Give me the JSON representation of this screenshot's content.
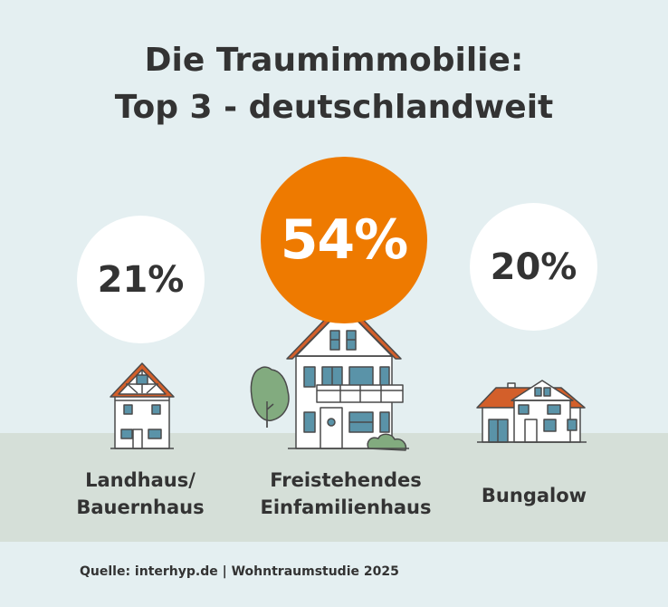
{
  "title": {
    "line1": "Die Traumimmobilie:",
    "line2": "Top 3 - deutschlandweit"
  },
  "chart_data": {
    "type": "bar",
    "title": "Die Traumimmobilie: Top 3 - deutschlandweit",
    "categories": [
      "Landhaus/ Bauernhaus",
      "Freistehendes Einfamilienhaus",
      "Bungalow"
    ],
    "values": [
      21,
      54,
      20
    ],
    "unit": "%",
    "value_labels": [
      "21%",
      "54%",
      "20%"
    ],
    "category_lines": [
      [
        "Landhaus/",
        "Bauernhaus"
      ],
      [
        "Freistehendes",
        "Einfamilienhaus"
      ],
      [
        "Bungalow"
      ]
    ]
  },
  "source": "Quelle: interhyp.de | Wohntraumstudie 2025",
  "colors": {
    "background": "#e4eff1",
    "ground": "#d5dfd8",
    "highlight": "#ee7a00",
    "text": "#333333",
    "roof": "#d35f2a",
    "window": "#5a93a8",
    "tree": "#82ab7f"
  }
}
